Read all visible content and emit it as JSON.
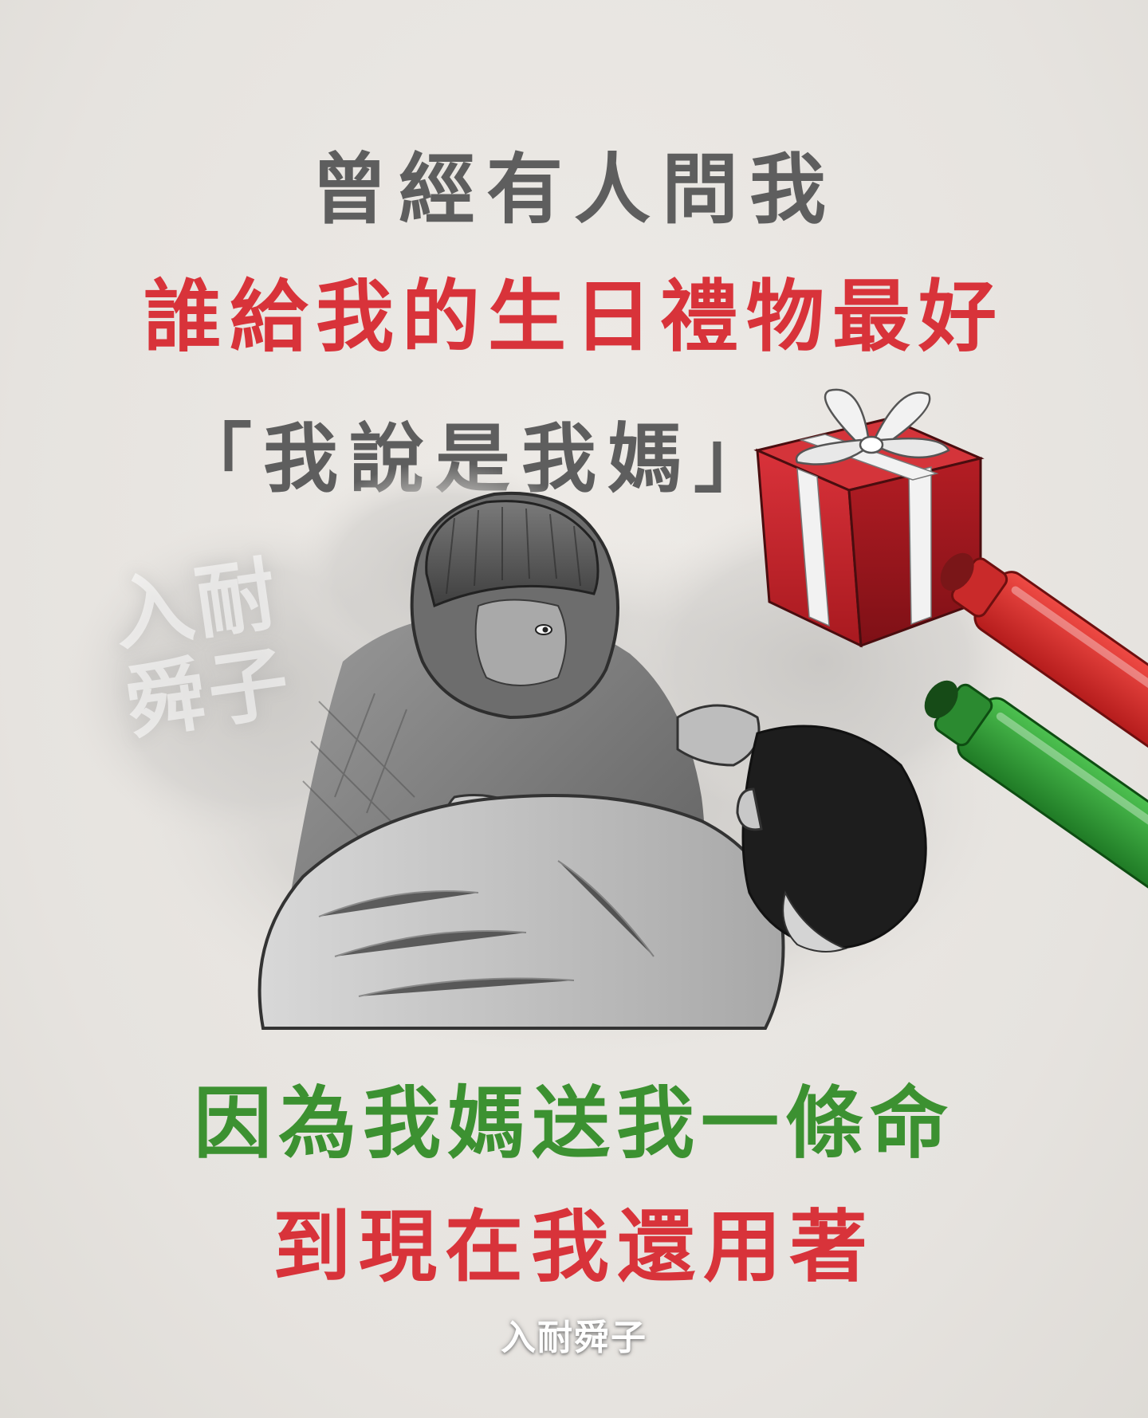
{
  "text": {
    "line1": "曾經有人問我",
    "line2": "誰給我的生日禮物最好",
    "quote_open": "「",
    "line3": "我說是我媽",
    "quote_close": "」",
    "line4": "因為我媽送我一條命",
    "line5": "到現在我還用著"
  },
  "watermark": {
    "logo_text": "入耐舜子"
  },
  "colors": {
    "gray_text": "#5e5e5e",
    "red_text": "#d8333a",
    "green_text": "#3c9131",
    "gift_red": "#c8232a",
    "ribbon": "#f2f2f2",
    "marker_red": "#d22a2a",
    "marker_green": "#2f9b34"
  },
  "icons": {
    "gift": "gift-box-icon",
    "marker_red": "red-marker-icon",
    "marker_green": "green-marker-icon"
  }
}
